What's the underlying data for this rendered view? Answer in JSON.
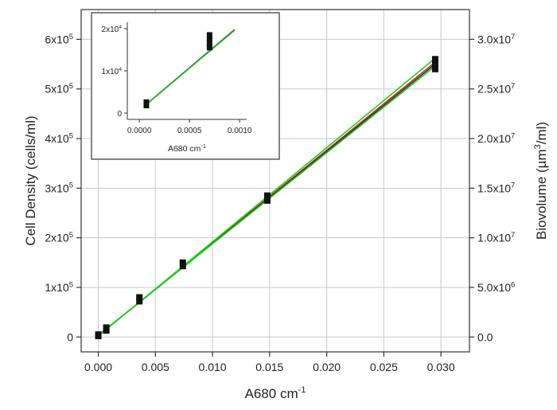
{
  "chart_data": [
    {
      "type": "scatter",
      "name": "main-plot",
      "xlabel": "A680 cm",
      "xlabel_sup": "-1",
      "ylabel": "Cell Density (cells/ml)",
      "y2label_pre": "Biovolume (",
      "y2label_unit": "µm",
      "y2label_sup": "3",
      "y2label_post": "/ml)",
      "xlim": [
        -0.0015,
        0.0325
      ],
      "ylim": [
        -30000,
        660000
      ],
      "y2lim": [
        -1500000,
        33000000
      ],
      "grid": true,
      "x_ticks": [
        {
          "value": 0.0,
          "label": "0.000"
        },
        {
          "value": 0.005,
          "label": "0.005"
        },
        {
          "value": 0.01,
          "label": "0.010"
        },
        {
          "value": 0.015,
          "label": "0.015"
        },
        {
          "value": 0.02,
          "label": "0.020"
        },
        {
          "value": 0.025,
          "label": "0.025"
        },
        {
          "value": 0.03,
          "label": "0.030"
        }
      ],
      "y_ticks": [
        {
          "value": 0,
          "label": "0"
        },
        {
          "value": 100000,
          "base": "1x10",
          "exp": "5"
        },
        {
          "value": 200000,
          "base": "2x10",
          "exp": "5"
        },
        {
          "value": 300000,
          "base": "3x10",
          "exp": "5"
        },
        {
          "value": 400000,
          "base": "4x10",
          "exp": "5"
        },
        {
          "value": 500000,
          "base": "5x10",
          "exp": "5"
        },
        {
          "value": 600000,
          "base": "6x10",
          "exp": "5"
        }
      ],
      "y2_ticks": [
        {
          "value": 0,
          "label": "0.0"
        },
        {
          "value": 5000000,
          "base": "5.0x10",
          "exp": "6"
        },
        {
          "value": 10000000,
          "base": "1.0x10",
          "exp": "7"
        },
        {
          "value": 15000000,
          "base": "1.5x10",
          "exp": "7"
        },
        {
          "value": 20000000,
          "base": "2.0x10",
          "exp": "7"
        },
        {
          "value": 25000000,
          "base": "2.5x10",
          "exp": "7"
        },
        {
          "value": 30000000,
          "base": "3.0x10",
          "exp": "7"
        }
      ],
      "points": [
        {
          "x": 0.0,
          "y": 2000
        },
        {
          "x": 0.0,
          "y": 5000
        },
        {
          "x": 0.0007,
          "y": 13000
        },
        {
          "x": 0.0007,
          "y": 19000
        },
        {
          "x": 0.0036,
          "y": 72000
        },
        {
          "x": 0.0036,
          "y": 80000
        },
        {
          "x": 0.0074,
          "y": 143000
        },
        {
          "x": 0.0074,
          "y": 150000
        },
        {
          "x": 0.0148,
          "y": 275000
        },
        {
          "x": 0.0148,
          "y": 285000
        },
        {
          "x": 0.0295,
          "y": 540000
        },
        {
          "x": 0.0295,
          "y": 552000
        },
        {
          "x": 0.0295,
          "y": 560000
        }
      ],
      "fit_lines": [
        {
          "color": "#cc2222",
          "x": [
            0.0,
            0.0295
          ],
          "y": [
            3000,
            554000
          ]
        },
        {
          "color": "#333333",
          "x": [
            0.0,
            0.0295
          ],
          "y": [
            3000,
            550000
          ]
        },
        {
          "color": "#22cc22",
          "x": [
            0.0,
            0.0295
          ],
          "y": [
            4000,
            546000
          ]
        },
        {
          "color": "#22cc22",
          "x": [
            0.0,
            0.0295
          ],
          "y": [
            2000,
            562000
          ]
        }
      ]
    },
    {
      "type": "scatter",
      "name": "inset-plot",
      "xlabel": "A680 cm",
      "xlabel_sup": "-1",
      "xlim": [
        -0.00012,
        0.00107
      ],
      "ylim": [
        -1500,
        21500
      ],
      "grid": false,
      "x_ticks": [
        {
          "value": 0.0,
          "label": "0.0000"
        },
        {
          "value": 0.0005,
          "label": "0.0005"
        },
        {
          "value": 0.001,
          "label": "0.0010"
        }
      ],
      "y_ticks": [
        {
          "value": 0,
          "label": "0"
        },
        {
          "value": 10000,
          "base": "1x10",
          "exp": "4"
        },
        {
          "value": 20000,
          "base": "2x10",
          "exp": "4"
        }
      ],
      "points": [
        {
          "x": 7e-05,
          "y": 1800
        },
        {
          "x": 7e-05,
          "y": 2600
        },
        {
          "x": 0.0007,
          "y": 15500
        },
        {
          "x": 0.0007,
          "y": 16500
        },
        {
          "x": 0.0007,
          "y": 17500
        },
        {
          "x": 0.0007,
          "y": 18500
        }
      ],
      "fit_lines": [
        {
          "color": "#333333",
          "x": [
            5e-05,
            0.00095
          ],
          "y": [
            1700,
            19800
          ]
        },
        {
          "color": "#22cc22",
          "x": [
            5e-05,
            0.00095
          ],
          "y": [
            1600,
            19600
          ]
        }
      ]
    }
  ]
}
